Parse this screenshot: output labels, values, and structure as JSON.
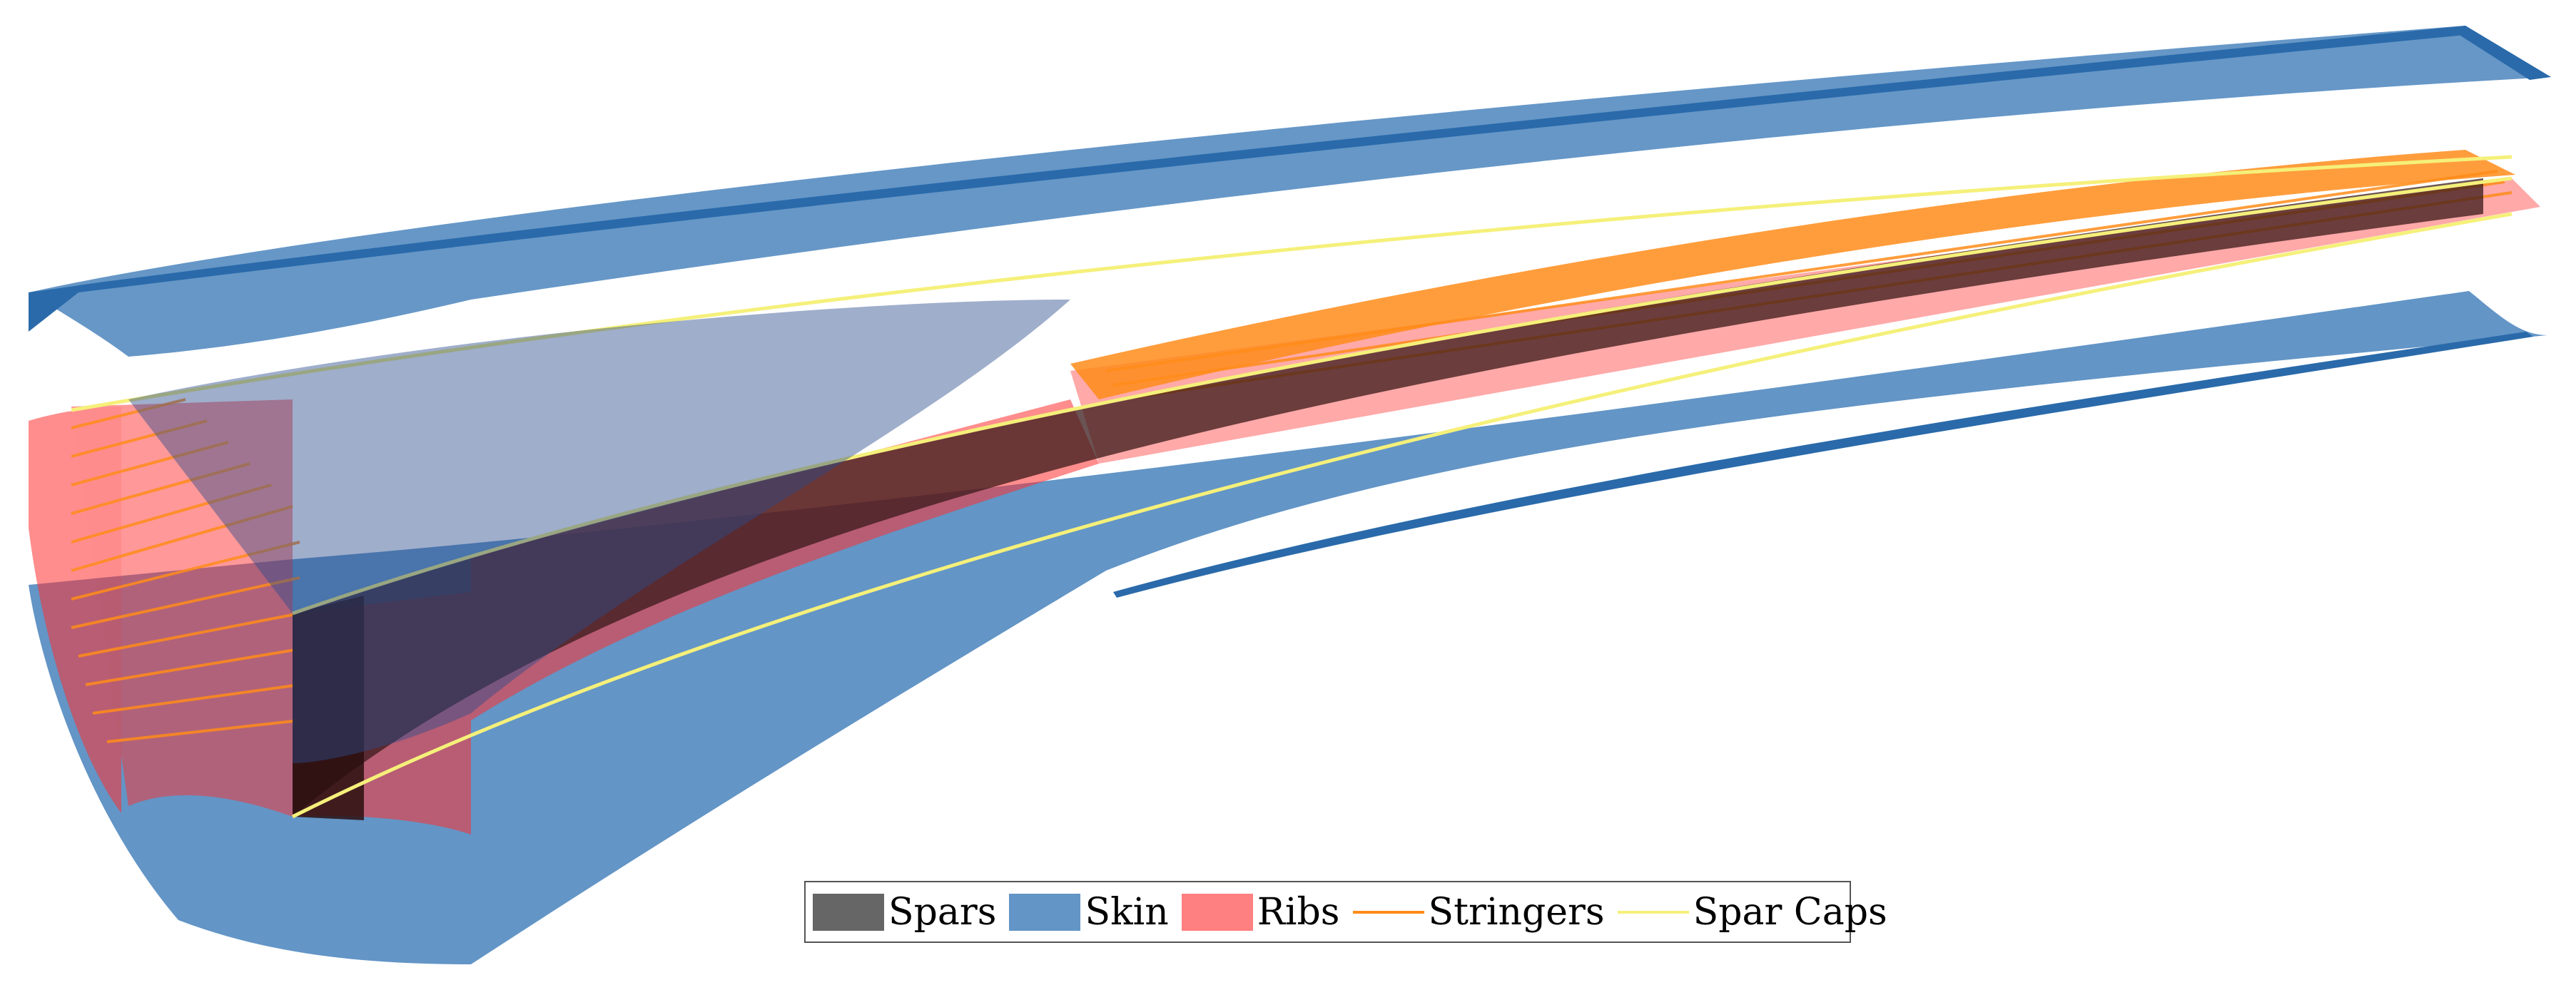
{
  "legend": {
    "items": [
      {
        "label": "Spars",
        "kind": "fill",
        "color": "#666666"
      },
      {
        "label": "Skin",
        "kind": "fill",
        "color": "#6395c6"
      },
      {
        "label": "Ribs",
        "kind": "fill",
        "color": "#ff8080"
      },
      {
        "label": "Stringers",
        "kind": "line",
        "color": "#ff8c1a"
      },
      {
        "label": "Spar Caps",
        "kind": "line",
        "color": "#f5f07a"
      }
    ]
  },
  "colors": {
    "skin": "#6395c6",
    "skin_edge": "#2a6aaa",
    "ribs": "#ff3030",
    "spars": "#3a1a1a",
    "stringers": "#ff8c1a",
    "spar_caps": "#f5f07a"
  }
}
